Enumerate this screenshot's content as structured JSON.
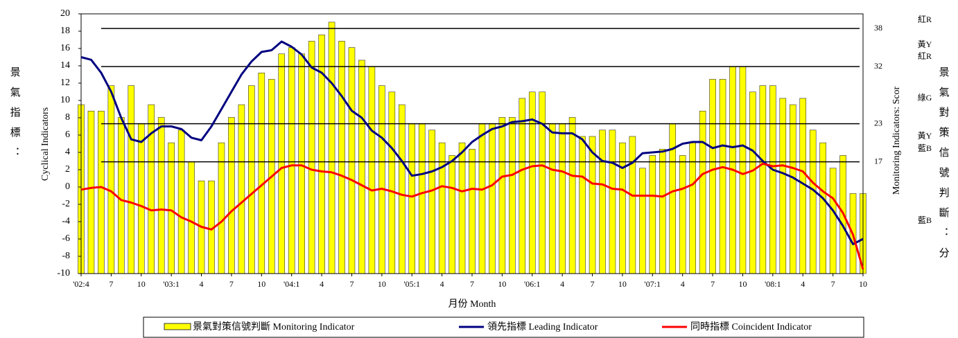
{
  "chart_data": {
    "type": "bar-line",
    "x_label": "月份 Month",
    "y_label": "Cyclical Indicators",
    "y_label_cjk": "景氣指標：",
    "y2_label": "Monitoring Indicators: Scor",
    "y2_label_cjk": "景氣對策信號判斷：分",
    "categories": [
      "'02:4",
      null,
      null,
      "7",
      null,
      null,
      "10",
      null,
      null,
      "'03:1",
      null,
      null,
      "4",
      null,
      null,
      "7",
      null,
      null,
      "10",
      null,
      null,
      "'04:1",
      null,
      null,
      "4",
      null,
      null,
      "7",
      null,
      null,
      "10",
      null,
      null,
      "'05:1",
      null,
      null,
      "4",
      null,
      null,
      "7",
      null,
      null,
      "10",
      null,
      null,
      "'06:1",
      null,
      null,
      "4",
      null,
      null,
      "7",
      null,
      null,
      "10",
      null,
      null,
      "'07:1",
      null,
      null,
      "4",
      null,
      null,
      "7",
      null,
      null,
      "10",
      null,
      null,
      "'08:1",
      null,
      null,
      "4",
      null,
      null,
      "7",
      null,
      null,
      "10"
    ],
    "ylim": [
      -10,
      20
    ],
    "yticks": [
      -10,
      -8,
      -6,
      -4,
      -2,
      0,
      2,
      4,
      6,
      8,
      10,
      12,
      14,
      16,
      18,
      20
    ],
    "y2lim": [
      -0.6,
      40.3
    ],
    "y2ticks": [
      17,
      23,
      32,
      38
    ],
    "signal_labels": [
      "紅R",
      "黃Y",
      "紅R",
      "綠G",
      "黃Y",
      "藍B",
      "藍B"
    ],
    "series": [
      {
        "name": "景氣對策信號判斷 Monitoring Indicator",
        "type": "bar",
        "axis": "y2",
        "color": "#ffff00",
        "values": [
          26,
          25,
          25,
          29,
          24,
          29,
          23,
          26,
          24,
          20,
          22,
          17,
          14,
          14,
          20,
          24,
          26,
          29,
          31,
          30,
          34,
          35,
          34,
          36,
          37,
          39,
          36,
          35,
          33,
          32,
          29,
          28,
          26,
          23,
          23,
          22,
          20,
          18,
          20,
          19,
          23,
          23,
          24,
          24,
          27,
          28,
          28,
          23,
          23,
          24,
          21,
          21,
          22,
          22,
          20,
          21,
          16,
          18,
          19,
          23,
          18,
          20,
          25,
          30,
          30,
          32,
          32,
          28,
          29,
          29,
          27,
          26,
          27,
          22,
          20,
          16,
          18,
          12,
          12
        ]
      },
      {
        "name": "領先指標 Leading Indicator",
        "type": "line",
        "color": "#000080",
        "values": [
          15.0,
          14.7,
          13.2,
          11.0,
          8.0,
          5.5,
          5.2,
          6.2,
          7.0,
          7.0,
          6.7,
          5.7,
          5.4,
          7.0,
          9.0,
          11.0,
          13.0,
          14.5,
          15.6,
          15.8,
          16.8,
          16.2,
          15.3,
          13.8,
          13.2,
          12.0,
          10.5,
          8.8,
          8.0,
          6.5,
          5.7,
          4.5,
          3.0,
          1.3,
          1.5,
          1.8,
          2.3,
          3.0,
          4.0,
          5.2,
          6.0,
          6.7,
          7.0,
          7.5,
          7.6,
          7.8,
          7.3,
          6.3,
          6.2,
          6.2,
          5.5,
          4.0,
          3.0,
          2.8,
          2.2,
          2.8,
          3.9,
          4.0,
          4.1,
          4.4,
          5.0,
          5.2,
          5.2,
          4.5,
          4.8,
          4.6,
          4.8,
          4.2,
          3.0,
          2.0,
          1.6,
          1.1,
          0.4,
          -0.3,
          -1.3,
          -2.7,
          -4.5,
          -6.6,
          -6.0
        ]
      },
      {
        "name": "同時指標 Coincident Indicator",
        "type": "line",
        "color": "#ff0000",
        "values": [
          -0.3,
          -0.1,
          0.0,
          -0.5,
          -1.5,
          -1.8,
          -2.2,
          -2.7,
          -2.6,
          -2.7,
          -3.5,
          -4.0,
          -4.6,
          -4.9,
          -4.0,
          -2.8,
          -1.8,
          -0.8,
          0.2,
          1.2,
          2.2,
          2.5,
          2.5,
          2.0,
          1.8,
          1.7,
          1.3,
          0.8,
          0.2,
          -0.4,
          -0.2,
          -0.5,
          -0.9,
          -1.1,
          -0.7,
          -0.4,
          0.1,
          -0.1,
          -0.5,
          -0.2,
          -0.3,
          0.2,
          1.2,
          1.4,
          2.0,
          2.4,
          2.5,
          2.0,
          1.8,
          1.3,
          1.2,
          0.4,
          0.3,
          -0.2,
          -0.3,
          -1.0,
          -1.0,
          -1.0,
          -1.1,
          -0.5,
          -0.2,
          0.3,
          1.5,
          2.0,
          2.3,
          2.0,
          1.5,
          1.9,
          2.7,
          2.4,
          2.5,
          2.2,
          1.8,
          0.5,
          -0.5,
          -1.3,
          -3.0,
          -5.5,
          -9.5
        ]
      }
    ]
  }
}
